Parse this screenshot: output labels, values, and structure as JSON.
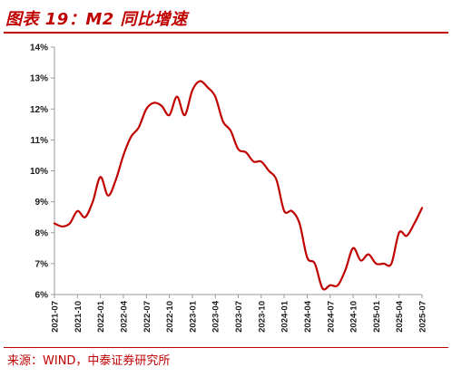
{
  "title": "图表 19：M2 同比增速",
  "source": "来源：WIND，中泰证券研究所",
  "colors": {
    "line": "#c00000",
    "title": "#c00000",
    "axis": "#999999"
  },
  "chart_data": {
    "type": "line",
    "title": "图表 19：M2 同比增速",
    "xlabel": "",
    "ylabel": "",
    "ylim": [
      6,
      14
    ],
    "y_ticks": [
      "6%",
      "7%",
      "8%",
      "9%",
      "10%",
      "11%",
      "12%",
      "13%",
      "14%"
    ],
    "x_tick_labels": [
      "2021-07",
      "2021-10",
      "2022-01",
      "2022-04",
      "2022-07",
      "2022-10",
      "2023-01",
      "2023-04",
      "2023-07",
      "2023-10",
      "2024-01",
      "2024-04",
      "2024-07",
      "2024-10",
      "2025-01",
      "2025-04",
      "2025-07"
    ],
    "grid": false,
    "legend": "none",
    "series": [
      {
        "x": [
          "2021-07",
          "2021-08",
          "2021-09",
          "2021-10",
          "2021-11",
          "2021-12",
          "2022-01",
          "2022-02",
          "2022-03",
          "2022-04",
          "2022-05",
          "2022-06",
          "2022-07",
          "2022-08",
          "2022-09",
          "2022-10",
          "2022-11",
          "2022-12",
          "2023-01",
          "2023-02",
          "2023-03",
          "2023-04",
          "2023-05",
          "2023-06",
          "2023-07",
          "2023-08",
          "2023-09",
          "2023-10",
          "2023-11",
          "2023-12",
          "2024-01",
          "2024-02",
          "2024-03",
          "2024-04",
          "2024-05",
          "2024-06",
          "2024-07",
          "2024-08",
          "2024-09",
          "2024-10",
          "2024-11",
          "2024-12",
          "2025-01",
          "2025-02",
          "2025-03",
          "2025-04",
          "2025-05",
          "2025-06",
          "2025-07"
        ],
        "values": [
          8.3,
          8.2,
          8.3,
          8.7,
          8.5,
          9.0,
          9.8,
          9.2,
          9.7,
          10.5,
          11.1,
          11.4,
          12.0,
          12.2,
          12.1,
          11.8,
          12.4,
          11.8,
          12.6,
          12.9,
          12.7,
          12.4,
          11.6,
          11.3,
          10.7,
          10.6,
          10.3,
          10.3,
          10.0,
          9.7,
          8.7,
          8.7,
          8.3,
          7.2,
          7.0,
          6.2,
          6.3,
          6.3,
          6.8,
          7.5,
          7.1,
          7.3,
          7.0,
          7.0,
          7.0,
          8.0,
          7.9,
          8.3,
          8.8
        ]
      }
    ]
  }
}
